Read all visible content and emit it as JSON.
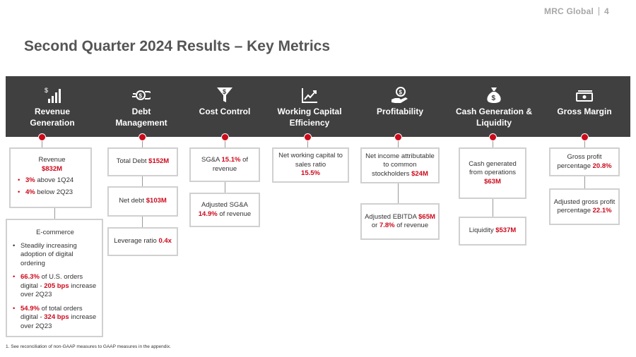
{
  "header": {
    "brand": "MRC Global",
    "page_number": "4",
    "title": "Second Quarter 2024 Results – Key Metrics"
  },
  "colors": {
    "accent_red": "#cc0a1c",
    "band_bg": "#404040",
    "box_border": "#d0d0d0"
  },
  "categories": [
    {
      "label": "Revenue Generation",
      "icon": "bar-chart-dollar-icon"
    },
    {
      "label": "Debt Management",
      "icon": "money-hand-icon"
    },
    {
      "label": "Cost Control",
      "icon": "funnel-dollar-icon"
    },
    {
      "label": "Working Capital Efficiency",
      "icon": "trend-chart-icon"
    },
    {
      "label": "Profitability",
      "icon": "hand-coin-icon"
    },
    {
      "label": "Cash Generation & Liquidity",
      "icon": "money-bag-icon"
    },
    {
      "label": "Gross Margin",
      "icon": "cash-bills-icon"
    }
  ],
  "revenue": {
    "label": "Revenue",
    "value": "$832M",
    "bullets": [
      {
        "v": "3%",
        "t": " above 1Q24"
      },
      {
        "v": "4%",
        "t": " below 2Q23"
      }
    ],
    "ecommerce": {
      "title": "E-commerce",
      "b1": "Steadily increasing adoption of digital ordering",
      "b2": {
        "v1": "66.3%",
        "t1": " of U.S. orders digital - ",
        "v2": "205 bps",
        "t2": " increase over 2Q23"
      },
      "b3": {
        "v1": "54.9%",
        "t1": " of total orders digital - ",
        "v2": "324 bps",
        "t2": " increase over 2Q23"
      }
    }
  },
  "debt": {
    "total": {
      "label": "Total Debt ",
      "value": "$152M"
    },
    "net": {
      "label": "Net debt ",
      "value": "$103M"
    },
    "leverage": {
      "label": "Leverage ratio ",
      "value": "0.4x"
    }
  },
  "cost": {
    "sga": {
      "pre": "SG&A ",
      "value": "15.1%",
      "post": " of revenue"
    },
    "adj": {
      "pre": "Adjusted SG&A",
      "value": "14.9%",
      "post": " of revenue"
    }
  },
  "wc": {
    "label": "Net working capital to sales ratio",
    "value": "15.5%"
  },
  "profit": {
    "ni": {
      "label": "Net income attributable to common stockholders ",
      "value": "$24M"
    },
    "ebitda": {
      "pre": "Adjusted EBITDA ",
      "v1": "$65M",
      "mid": "or ",
      "v2": "7.8%",
      "post": " of revenue"
    }
  },
  "cash": {
    "ops": {
      "label": "Cash generated from operations",
      "value": "$63M"
    },
    "liq": {
      "label": "Liquidity ",
      "value": "$537M"
    }
  },
  "gross": {
    "gp": {
      "label": "Gross profit percentage ",
      "value": "20.8%"
    },
    "adj": {
      "label": "Adjusted gross profit percentage ",
      "value": "22.1%"
    }
  },
  "footnote": "1.   See reconciliation of non-GAAP measures to GAAP measures in the appendix."
}
